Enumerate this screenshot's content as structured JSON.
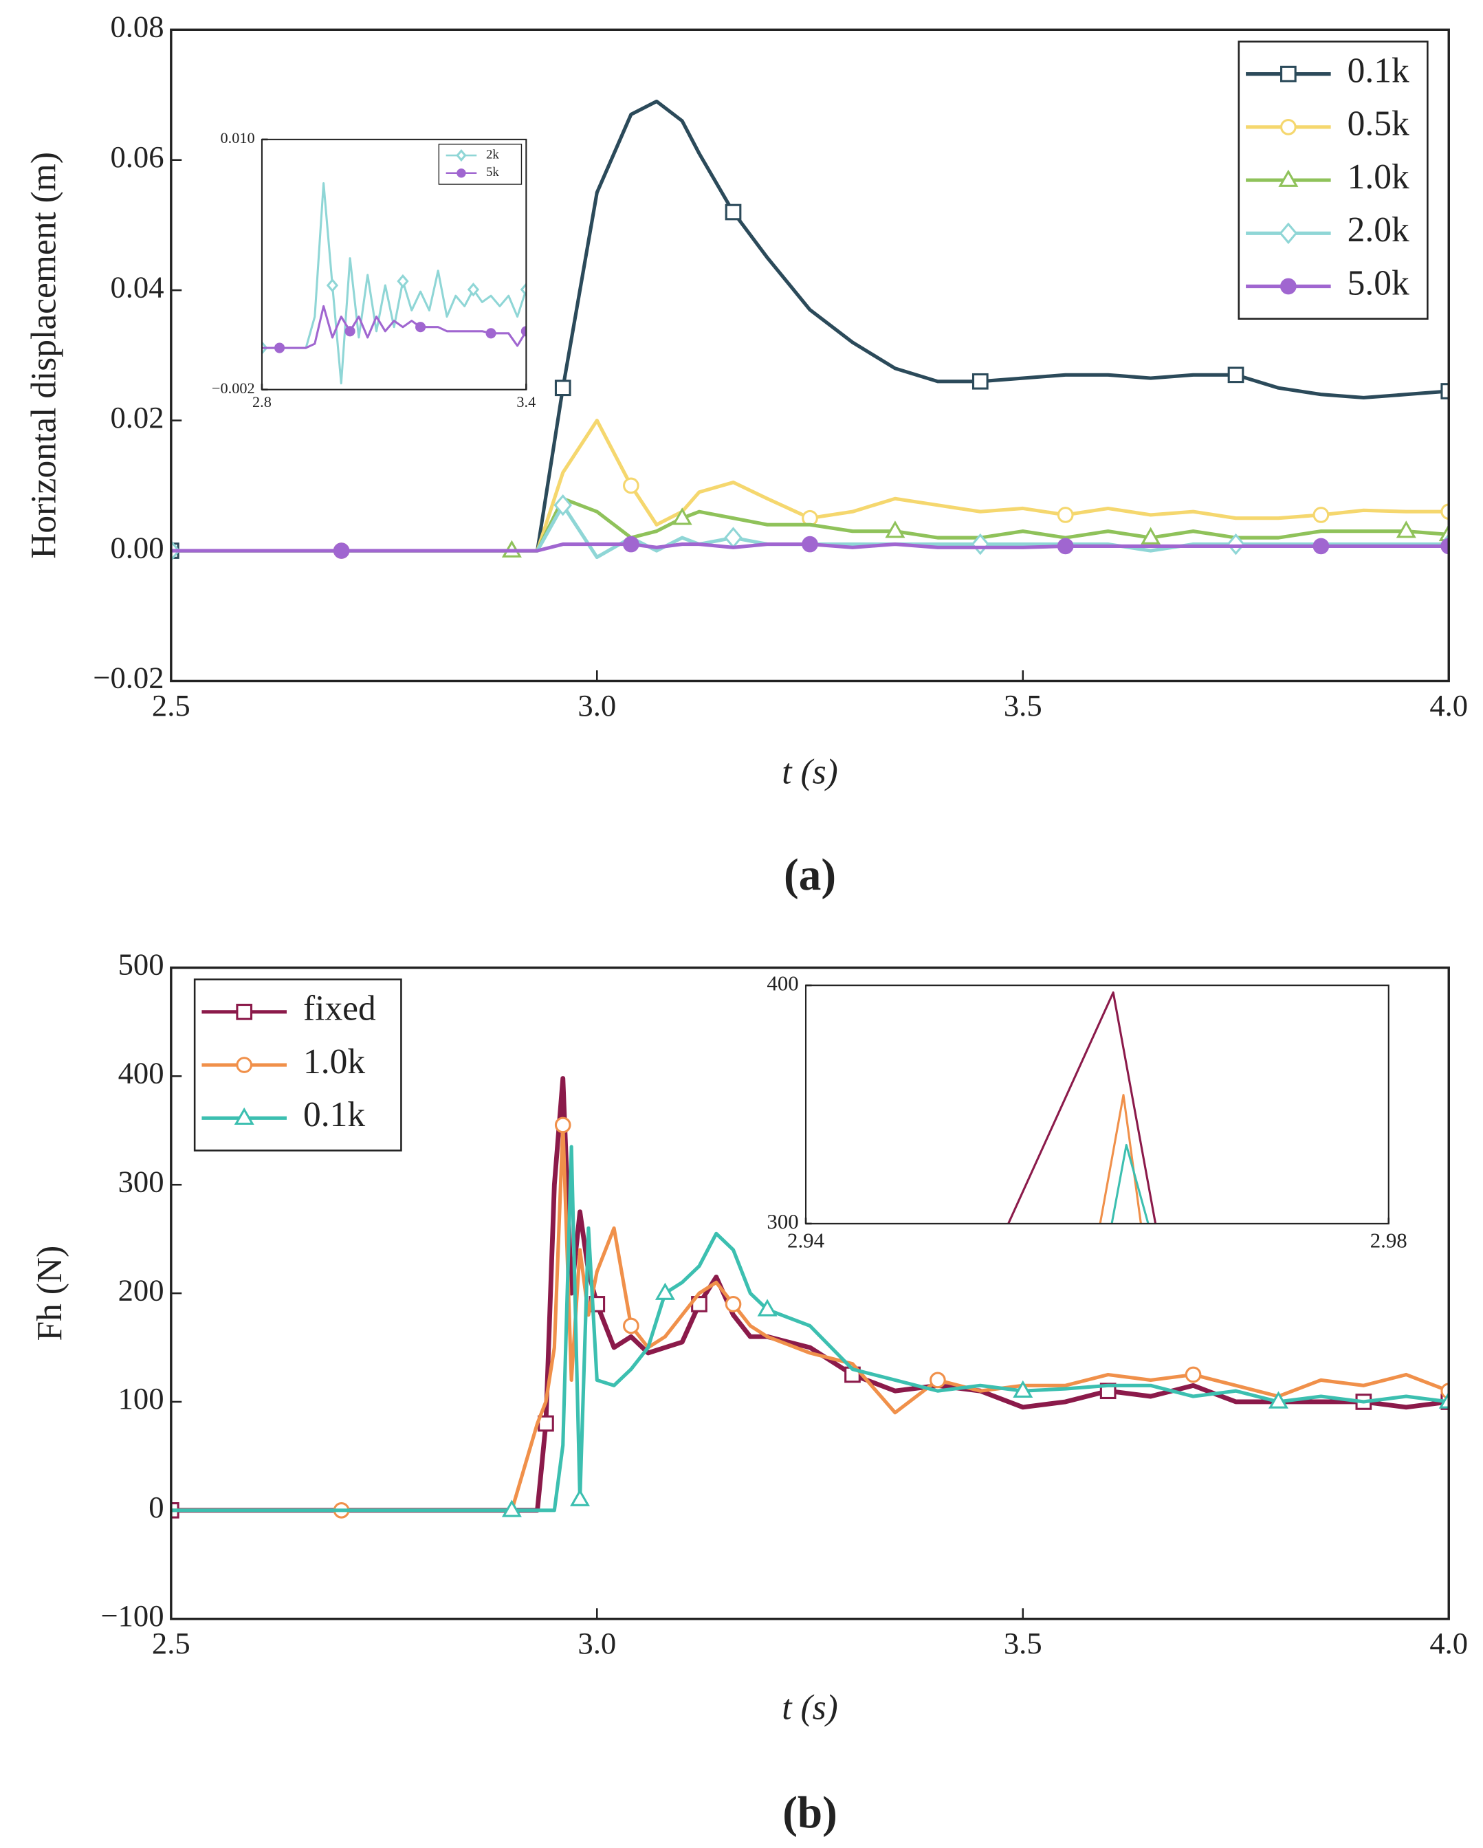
{
  "chart_data": [
    {
      "type": "line",
      "title": "(a)",
      "x_label": "t (s)",
      "y_label": "Horizontal displacement (m)",
      "x": [
        2.5,
        2.6,
        2.7,
        2.8,
        2.9,
        2.93,
        2.96,
        3.0,
        3.04,
        3.07,
        3.1,
        3.12,
        3.16,
        3.2,
        3.25,
        3.3,
        3.35,
        3.4,
        3.45,
        3.5,
        3.55,
        3.6,
        3.65,
        3.7,
        3.75,
        3.8,
        3.85,
        3.9,
        3.95,
        4.0
      ],
      "series": [
        {
          "name": "0.1k",
          "color": "#2b4a5a",
          "marker": "square",
          "values": [
            0,
            0,
            0,
            0,
            0,
            0,
            0.025,
            0.055,
            0.067,
            0.069,
            0.066,
            0.061,
            0.052,
            0.045,
            0.037,
            0.032,
            0.028,
            0.026,
            0.026,
            0.0265,
            0.027,
            0.027,
            0.0265,
            0.027,
            0.027,
            0.025,
            0.024,
            0.0235,
            0.024,
            0.0245
          ]
        },
        {
          "name": "0.5k",
          "color": "#f5d76e",
          "marker": "circle",
          "values": [
            0,
            0,
            0,
            0,
            0,
            0,
            0.012,
            0.02,
            0.01,
            0.004,
            0.006,
            0.009,
            0.0105,
            0.008,
            0.005,
            0.006,
            0.008,
            0.007,
            0.006,
            0.0065,
            0.0055,
            0.0065,
            0.0055,
            0.006,
            0.005,
            0.005,
            0.0055,
            0.0062,
            0.006,
            0.006
          ]
        },
        {
          "name": "1.0k",
          "color": "#8fc25a",
          "marker": "triangle",
          "values": [
            0,
            0,
            0,
            0,
            0,
            0,
            0.008,
            0.006,
            0.002,
            0.003,
            0.005,
            0.006,
            0.005,
            0.004,
            0.004,
            0.003,
            0.003,
            0.002,
            0.002,
            0.003,
            0.002,
            0.003,
            0.002,
            0.003,
            0.002,
            0.002,
            0.003,
            0.003,
            0.003,
            0.0025
          ]
        },
        {
          "name": "2.0k",
          "color": "#8fd6d6",
          "marker": "diamond",
          "values": [
            0,
            0,
            0,
            0,
            0,
            0,
            0.007,
            -0.001,
            0.002,
            0,
            0.002,
            0.001,
            0.002,
            0.001,
            0.001,
            0.001,
            0.001,
            0.001,
            0.001,
            0.001,
            0.001,
            0.001,
            0,
            0.001,
            0.001,
            0.001,
            0.001,
            0.001,
            0.001,
            0.001
          ]
        },
        {
          "name": "5.0k",
          "color": "#a066d0",
          "marker": "dot",
          "values": [
            0,
            0,
            0,
            0,
            0,
            0,
            0.001,
            0.001,
            0.001,
            0.0005,
            0.001,
            0.001,
            0.0005,
            0.001,
            0.001,
            0.0005,
            0.001,
            0.0005,
            0.0005,
            0.0005,
            0.0007,
            0.0007,
            0.0007,
            0.0007,
            0.0007,
            0.0007,
            0.0007,
            0.0007,
            0.0007,
            0.0007
          ]
        }
      ],
      "xlim": [
        2.5,
        4.0
      ],
      "ylim": [
        -0.02,
        0.08
      ],
      "xticks": [
        {
          "value": 2.5,
          "label": "2.5"
        },
        {
          "value": 3,
          "label": "3.0"
        },
        {
          "value": 3.5,
          "label": "3.5"
        },
        {
          "value": 4,
          "label": "4.0"
        }
      ],
      "yticks": [
        {
          "value": -0.02,
          "label": "−0.02"
        },
        {
          "value": 0,
          "label": "0.00"
        },
        {
          "value": 0.02,
          "label": "0.02"
        },
        {
          "value": 0.04,
          "label": "0.04"
        },
        {
          "value": 0.06,
          "label": "0.06"
        },
        {
          "value": 0.08,
          "label": "0.08"
        }
      ],
      "legend": "upper right"
    },
    {
      "type": "line",
      "x": [
        2.8,
        2.82,
        2.84,
        2.86,
        2.88,
        2.9,
        2.92,
        2.94,
        2.96,
        2.98,
        3.0,
        3.02,
        3.04,
        3.06,
        3.08,
        3.1,
        3.12,
        3.14,
        3.16,
        3.18,
        3.2,
        3.22,
        3.24,
        3.26,
        3.28,
        3.3,
        3.32,
        3.34,
        3.36,
        3.38,
        3.4
      ],
      "series": [
        {
          "name": "2k",
          "color": "#8fd6d6",
          "marker": "diamond",
          "values": [
            0,
            0,
            0,
            0,
            0,
            0,
            0.0015,
            0.0079,
            0.003,
            -0.0017,
            0.0043,
            0.0005,
            0.0035,
            0.0008,
            0.003,
            0.001,
            0.0032,
            0.0018,
            0.0027,
            0.0018,
            0.0037,
            0.0015,
            0.0025,
            0.002,
            0.0028,
            0.0022,
            0.0025,
            0.002,
            0.0025,
            0.0015,
            0.0028
          ]
        },
        {
          "name": "5k",
          "color": "#a066d0",
          "marker": "dot",
          "values": [
            0,
            0,
            0,
            0,
            0,
            0,
            0.0002,
            0.002,
            0.0005,
            0.0015,
            0.0008,
            0.0015,
            0.0005,
            0.0015,
            0.0008,
            0.0013,
            0.001,
            0.0013,
            0.001,
            0.001,
            0.001,
            0.0008,
            0.0008,
            0.0008,
            0.0008,
            0.0008,
            0.0007,
            0.0007,
            0.0007,
            0.0001,
            0.0008
          ]
        }
      ],
      "xlim": [
        2.8,
        3.4
      ],
      "ylim": [
        -0.002,
        0.01
      ],
      "xticks": [
        2.8,
        3.4
      ],
      "yticks": [
        {
          "value": -0.002,
          "label": "−0.002"
        },
        {
          "value": 0.01,
          "label": "0.010"
        }
      ],
      "legend": "upper right"
    },
    {
      "type": "line",
      "title": "(b)",
      "x_label": "t (s)",
      "y_label": "Fh (N)",
      "x": [
        2.5,
        2.6,
        2.7,
        2.8,
        2.9,
        2.93,
        2.94,
        2.95,
        2.96,
        2.97,
        2.98,
        2.99,
        3.0,
        3.02,
        3.04,
        3.06,
        3.08,
        3.1,
        3.12,
        3.14,
        3.16,
        3.18,
        3.2,
        3.25,
        3.3,
        3.35,
        3.4,
        3.45,
        3.5,
        3.55,
        3.6,
        3.65,
        3.7,
        3.75,
        3.8,
        3.85,
        3.9,
        3.95,
        4.0
      ],
      "series": [
        {
          "name": "fixed",
          "color": "#8b1a4a",
          "marker": "square",
          "values": [
            0,
            0,
            0,
            0,
            0,
            0,
            80,
            300,
            398,
            200,
            275,
            220,
            190,
            150,
            160,
            145,
            150,
            155,
            190,
            215,
            180,
            160,
            160,
            150,
            125,
            110,
            115,
            110,
            95,
            100,
            110,
            105,
            115,
            100,
            100,
            100,
            100,
            95,
            100
          ]
        },
        {
          "name": "1.0k",
          "color": "#f0904a",
          "marker": "circle",
          "values": [
            0,
            0,
            0,
            0,
            0,
            80,
            100,
            150,
            355,
            120,
            240,
            180,
            220,
            260,
            170,
            150,
            160,
            180,
            200,
            210,
            190,
            170,
            160,
            145,
            135,
            90,
            120,
            110,
            115,
            115,
            125,
            120,
            125,
            115,
            105,
            120,
            115,
            125,
            110
          ]
        },
        {
          "name": "0.1k",
          "color": "#3cbfb0",
          "marker": "triangle",
          "values": [
            0,
            0,
            0,
            0,
            0,
            0,
            0,
            0,
            60,
            335,
            10,
            260,
            120,
            115,
            130,
            150,
            200,
            210,
            225,
            255,
            240,
            200,
            185,
            170,
            130,
            120,
            110,
            115,
            110,
            112,
            115,
            115,
            105,
            110,
            100,
            105,
            100,
            105,
            100
          ]
        }
      ],
      "xlim": [
        2.5,
        4.0
      ],
      "ylim": [
        -100,
        500
      ],
      "xticks": [
        {
          "value": 2.5,
          "label": "2.5"
        },
        {
          "value": 3,
          "label": "3.0"
        },
        {
          "value": 3.5,
          "label": "3.5"
        },
        {
          "value": 4,
          "label": "4.0"
        }
      ],
      "yticks": [
        {
          "value": -100,
          "label": "−100"
        },
        0,
        100,
        200,
        300,
        400,
        500
      ],
      "legend": "upper left"
    },
    {
      "type": "line",
      "series": [
        {
          "color": "#8b1a4a",
          "x": [
            2.9539,
            2.9611,
            2.964
          ],
          "values": [
            300,
            397,
            300
          ]
        },
        {
          "color": "#f0904a",
          "x": [
            2.9602,
            2.9618,
            2.963
          ],
          "values": [
            300,
            354,
            300
          ]
        },
        {
          "color": "#3cbfb0",
          "x": [
            2.961,
            2.962,
            2.9635
          ],
          "values": [
            300,
            333,
            300
          ]
        }
      ],
      "xlim": [
        2.94,
        2.98
      ],
      "ylim": [
        300,
        400
      ],
      "xticks": [
        2.94,
        2.98
      ],
      "yticks": [
        300,
        400
      ]
    }
  ]
}
